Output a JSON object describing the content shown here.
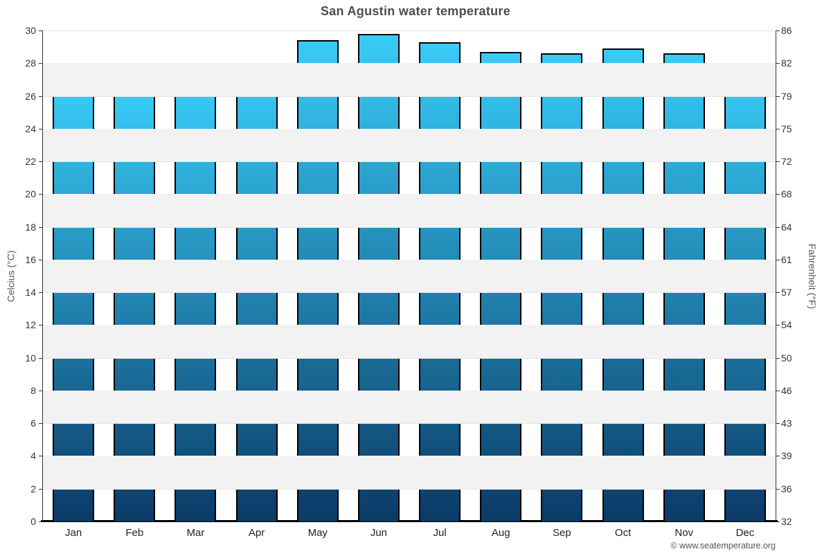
{
  "chart_data": {
    "type": "bar",
    "title": "San Agustin water temperature",
    "categories": [
      "Jan",
      "Feb",
      "Mar",
      "Apr",
      "May",
      "Jun",
      "Jul",
      "Aug",
      "Sep",
      "Oct",
      "Nov",
      "Dec"
    ],
    "values": [
      26.7,
      26.4,
      26.8,
      27.8,
      29.4,
      29.8,
      29.3,
      28.7,
      28.6,
      28.9,
      28.6,
      27.5
    ],
    "unit": "°C",
    "ylabel_left": "Celcius (°C)",
    "ylabel_right": "Fahrenheit (°F)",
    "ylim": [
      0,
      30
    ],
    "ytick_step": 2,
    "yticks_celsius": [
      "30",
      "28",
      "26",
      "24",
      "22",
      "20",
      "18",
      "16",
      "14",
      "12",
      "10",
      "8",
      "6",
      "4",
      "2",
      "0"
    ],
    "yticks_fahrenheit": [
      "86",
      "82",
      "79",
      "75",
      "72",
      "68",
      "64",
      "61",
      "57",
      "54",
      "50",
      "46",
      "43",
      "39",
      "36",
      "32"
    ],
    "legend": "none",
    "grid": "horizontal",
    "colors": {
      "bar_gradient_top": "#38ccf8",
      "bar_gradient_bottom": "#0b3a66",
      "bar_border": "#000000",
      "band": "#f2f2f2",
      "gridline": "#e4e4e4",
      "axis_line": "#333333",
      "baseline": "#000000",
      "title_text": "#4d4d4d",
      "tick_text": "#333333",
      "axis_title_text": "#555555"
    }
  },
  "footer": {
    "copyright": "© www.seatemperature.org"
  }
}
